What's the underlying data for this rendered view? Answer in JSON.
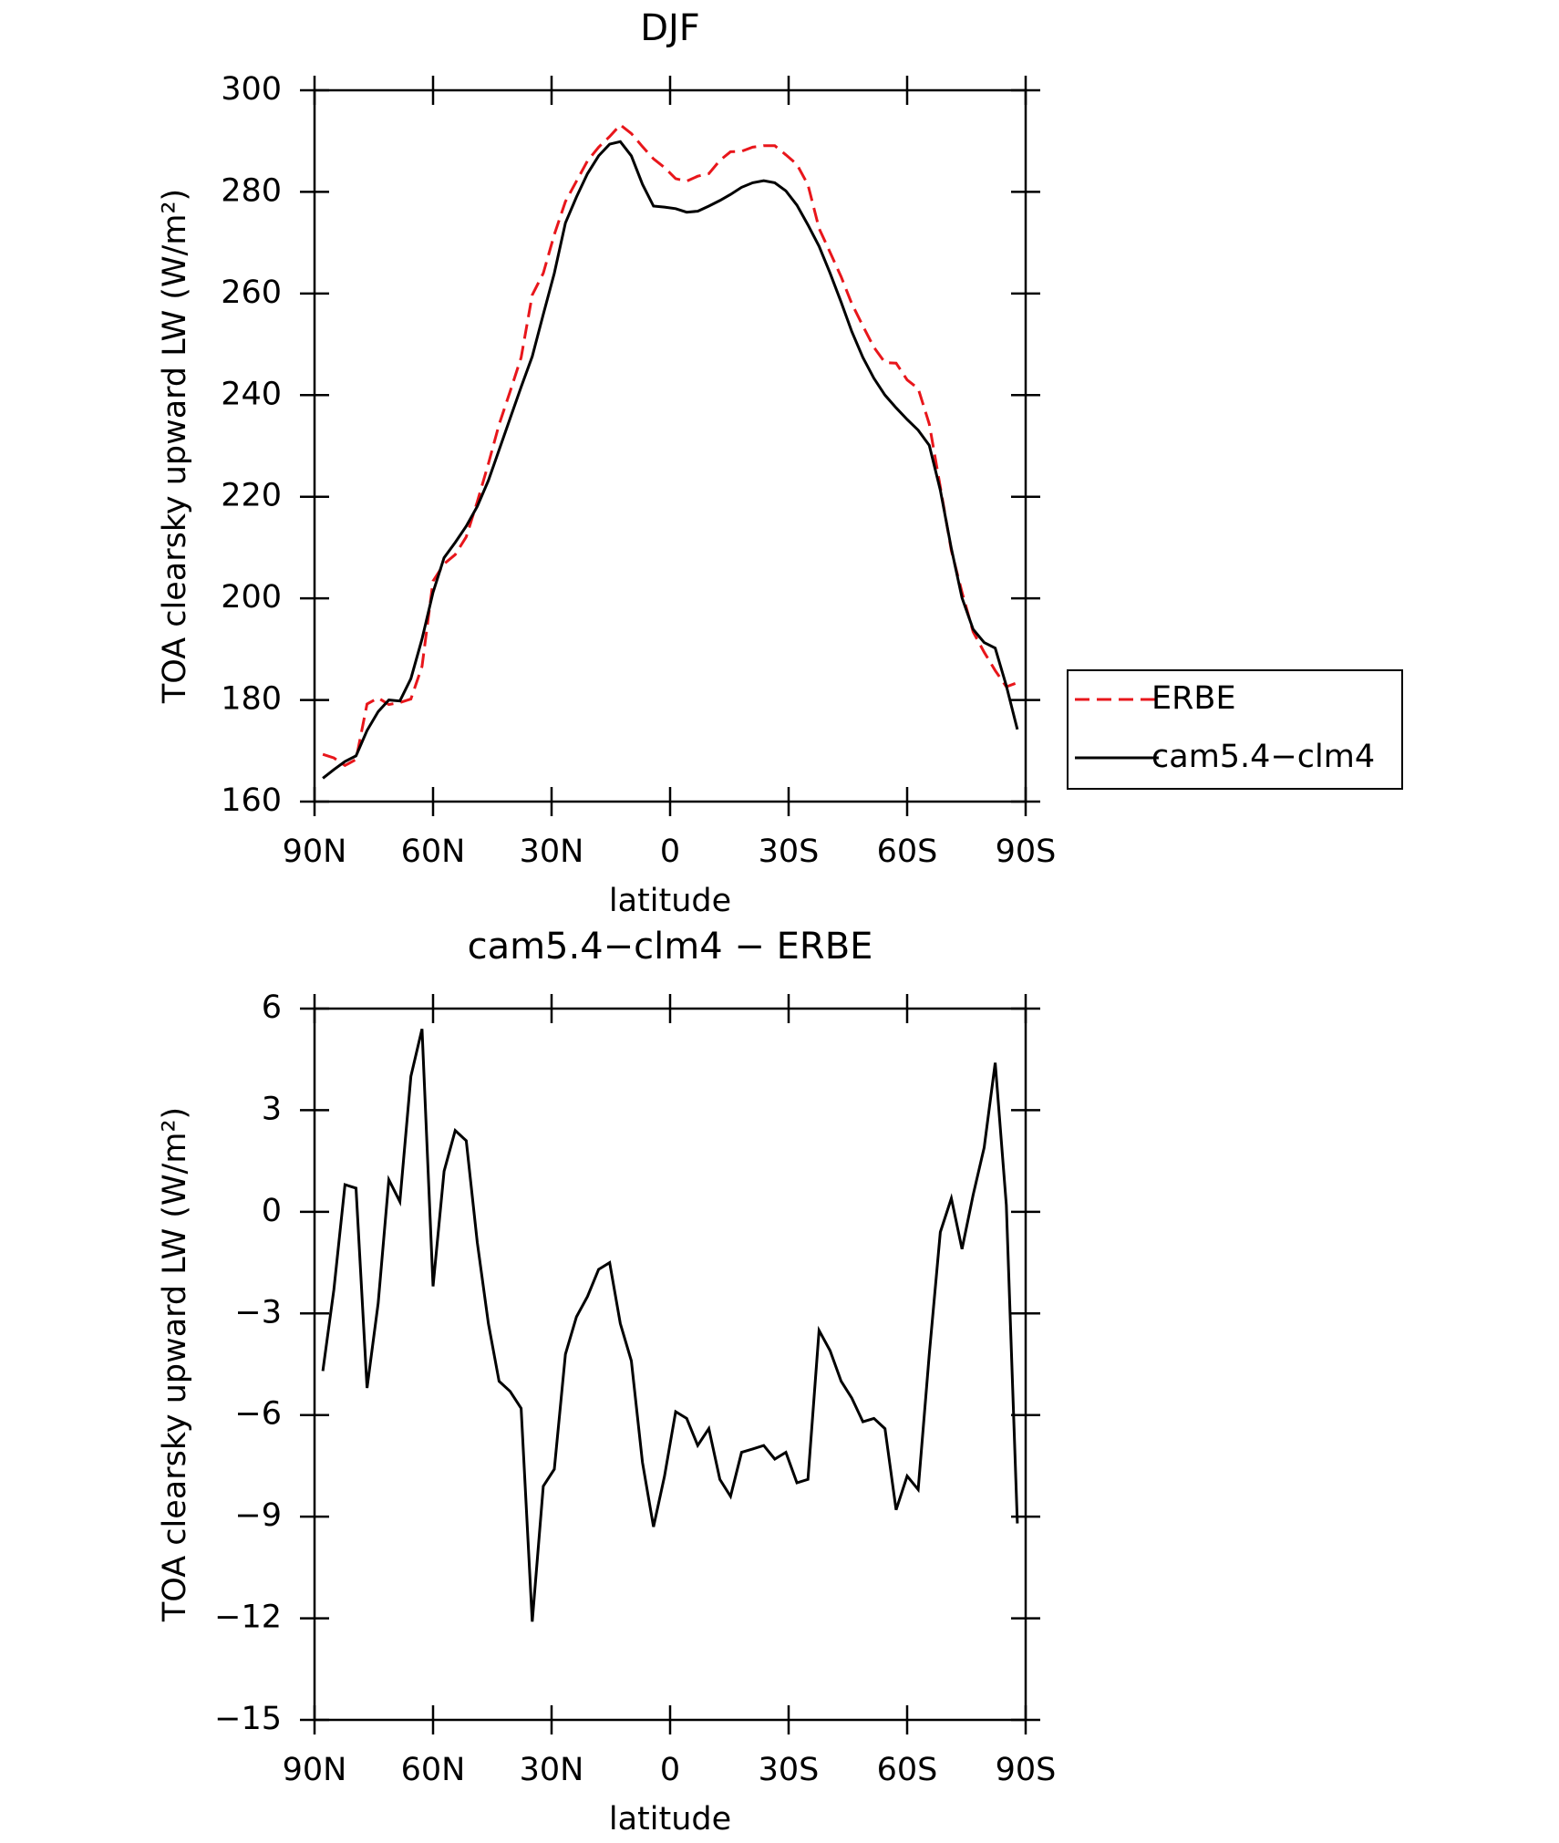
{
  "chart_data": [
    {
      "type": "line",
      "title": "DJF",
      "x_label": "latitude",
      "y_label": "TOA clearsky upward LW (W/m²)",
      "x": [
        87.9,
        85.1,
        82.3,
        79.5,
        76.7,
        73.9,
        71.2,
        68.4,
        65.6,
        62.8,
        60.0,
        57.2,
        54.4,
        51.6,
        48.8,
        46.0,
        43.3,
        40.5,
        37.7,
        34.9,
        32.1,
        29.3,
        26.5,
        23.7,
        20.9,
        18.1,
        15.3,
        12.6,
        9.8,
        7.0,
        4.2,
        1.4,
        -1.4,
        -4.2,
        -7.0,
        -9.8,
        -12.6,
        -15.3,
        -18.1,
        -20.9,
        -23.7,
        -26.5,
        -29.3,
        -32.1,
        -34.9,
        -37.7,
        -40.5,
        -43.3,
        -46.0,
        -48.8,
        -51.6,
        -54.4,
        -57.2,
        -60.0,
        -62.8,
        -65.6,
        -68.4,
        -71.2,
        -73.9,
        -76.7,
        -79.5,
        -82.3,
        -85.1,
        -87.9
      ],
      "series": [
        {
          "name": "ERBE",
          "color": "#e8161b",
          "line_style": "dashed",
          "values": [
            169.3,
            168.6,
            167.1,
            168.3,
            179.2,
            180.4,
            179.1,
            179.5,
            180.2,
            186.6,
            203.4,
            206.8,
            208.6,
            212.1,
            219.0,
            226.5,
            234.2,
            240.7,
            247.4,
            259.7,
            264.0,
            271.6,
            278.1,
            282.1,
            286.1,
            288.8,
            290.9,
            293.2,
            291.5,
            288.9,
            286.5,
            284.8,
            282.6,
            282.1,
            283.1,
            283.6,
            286.2,
            287.9,
            288.0,
            288.8,
            289.1,
            289.1,
            287.3,
            285.4,
            281.4,
            272.8,
            268.1,
            263.3,
            258.0,
            253.6,
            249.4,
            246.4,
            246.3,
            243.0,
            241.3,
            234.3,
            221.9,
            209.4,
            201.2,
            193.4,
            189.4,
            185.8,
            182.6,
            183.4
          ]
        },
        {
          "name": "cam5.4−clm4",
          "color": "#000000",
          "line_style": "solid",
          "values": [
            164.6,
            166.3,
            167.9,
            169.0,
            174.0,
            177.7,
            180.0,
            179.8,
            184.2,
            192.0,
            201.2,
            208.0,
            211.0,
            214.2,
            218.1,
            223.2,
            229.2,
            235.4,
            241.6,
            247.6,
            255.9,
            264.0,
            273.9,
            279.0,
            283.6,
            287.1,
            289.4,
            289.9,
            287.1,
            281.5,
            277.2,
            277.0,
            276.7,
            276.0,
            276.2,
            277.2,
            278.3,
            279.5,
            280.9,
            281.8,
            282.2,
            281.8,
            280.2,
            277.4,
            273.5,
            269.3,
            264.0,
            258.3,
            252.5,
            247.4,
            243.3,
            240.0,
            237.5,
            235.2,
            233.1,
            230.1,
            221.3,
            209.8,
            200.1,
            193.9,
            191.3,
            190.2,
            182.8,
            174.2
          ]
        }
      ],
      "xlim": [
        90,
        -90
      ],
      "xticks": [
        {
          "value": 90,
          "label": "90N"
        },
        {
          "value": 60,
          "label": "60N"
        },
        {
          "value": 30,
          "label": "30N"
        },
        0,
        {
          "value": -30,
          "label": "30S"
        },
        {
          "value": -60,
          "label": "60S"
        },
        {
          "value": -90,
          "label": "90S"
        }
      ],
      "ylim": [
        160,
        300
      ],
      "yticks": [
        160,
        180,
        200,
        220,
        240,
        260,
        280,
        300
      ],
      "legend": "right"
    },
    {
      "type": "line",
      "title": "cam5.4−clm4 − ERBE",
      "x_label": "latitude",
      "y_label": "TOA clearsky upward LW (W/m²)",
      "x": [
        87.9,
        85.1,
        82.3,
        79.5,
        76.7,
        73.9,
        71.2,
        68.4,
        65.6,
        62.8,
        60.0,
        57.2,
        54.4,
        51.6,
        48.8,
        46.0,
        43.3,
        40.5,
        37.7,
        34.9,
        32.1,
        29.3,
        26.5,
        23.7,
        20.9,
        18.1,
        15.3,
        12.6,
        9.8,
        7.0,
        4.2,
        1.4,
        -1.4,
        -4.2,
        -7.0,
        -9.8,
        -12.6,
        -15.3,
        -18.1,
        -20.9,
        -23.7,
        -26.5,
        -29.3,
        -32.1,
        -34.9,
        -37.7,
        -40.5,
        -43.3,
        -46.0,
        -48.8,
        -51.6,
        -54.4,
        -57.2,
        -60.0,
        -62.8,
        -65.6,
        -68.4,
        -71.2,
        -73.9,
        -76.7,
        -79.5,
        -82.3,
        -85.1,
        -87.9
      ],
      "values": [
        -4.7,
        -2.3,
        0.8,
        0.7,
        -5.2,
        -2.7,
        0.95,
        0.3,
        4.0,
        5.4,
        -2.2,
        1.2,
        2.4,
        2.1,
        -0.9,
        -3.3,
        -5.0,
        -5.3,
        -5.8,
        -12.1,
        -8.1,
        -7.6,
        -4.2,
        -3.1,
        -2.5,
        -1.7,
        -1.5,
        -3.3,
        -4.4,
        -7.4,
        -9.3,
        -7.8,
        -5.9,
        -6.1,
        -6.9,
        -6.4,
        -7.9,
        -8.4,
        -7.1,
        -7.0,
        -6.9,
        -7.3,
        -7.1,
        -8.0,
        -7.9,
        -3.5,
        -4.1,
        -5.0,
        -5.5,
        -6.2,
        -6.1,
        -6.4,
        -8.8,
        -7.8,
        -8.2,
        -4.2,
        -0.6,
        0.4,
        -1.1,
        0.5,
        1.9,
        4.4,
        0.2,
        -9.2
      ],
      "color": "#000000",
      "line_style": "solid",
      "xlim": [
        90,
        -90
      ],
      "xticks": [
        {
          "value": 90,
          "label": "90N"
        },
        {
          "value": 60,
          "label": "60N"
        },
        {
          "value": 30,
          "label": "30N"
        },
        0,
        {
          "value": -30,
          "label": "30S"
        },
        {
          "value": -60,
          "label": "60S"
        },
        {
          "value": -90,
          "label": "90S"
        }
      ],
      "ylim": [
        -15,
        6
      ],
      "yticks": [
        {
          "value": -15,
          "label": "−15"
        },
        {
          "value": -12,
          "label": "−12"
        },
        {
          "value": -9,
          "label": "−9"
        },
        {
          "value": -6,
          "label": "−6"
        },
        {
          "value": -3,
          "label": "−3"
        },
        0,
        3,
        6
      ]
    }
  ]
}
